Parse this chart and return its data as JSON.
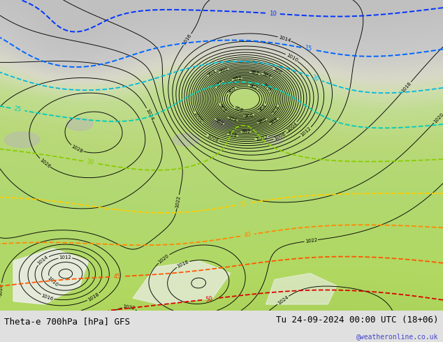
{
  "title_left": "Theta-e 700hPa [hPa] GFS",
  "title_right": "Tu 24-09-2024 00:00 UTC (18+06)",
  "watermark": "@weatheronline.co.uk",
  "bottom_bar_color": "#e0e0e0",
  "title_fontsize": 9,
  "watermark_color": "#4444cc",
  "watermark_fontsize": 7,
  "figure_width": 6.34,
  "figure_height": 4.9,
  "dpi": 100,
  "gray_bg": "#c8c8c8",
  "green_bg": "#b8d888",
  "light_green": "#cce8a0",
  "white_patch": "#f0f0f0"
}
